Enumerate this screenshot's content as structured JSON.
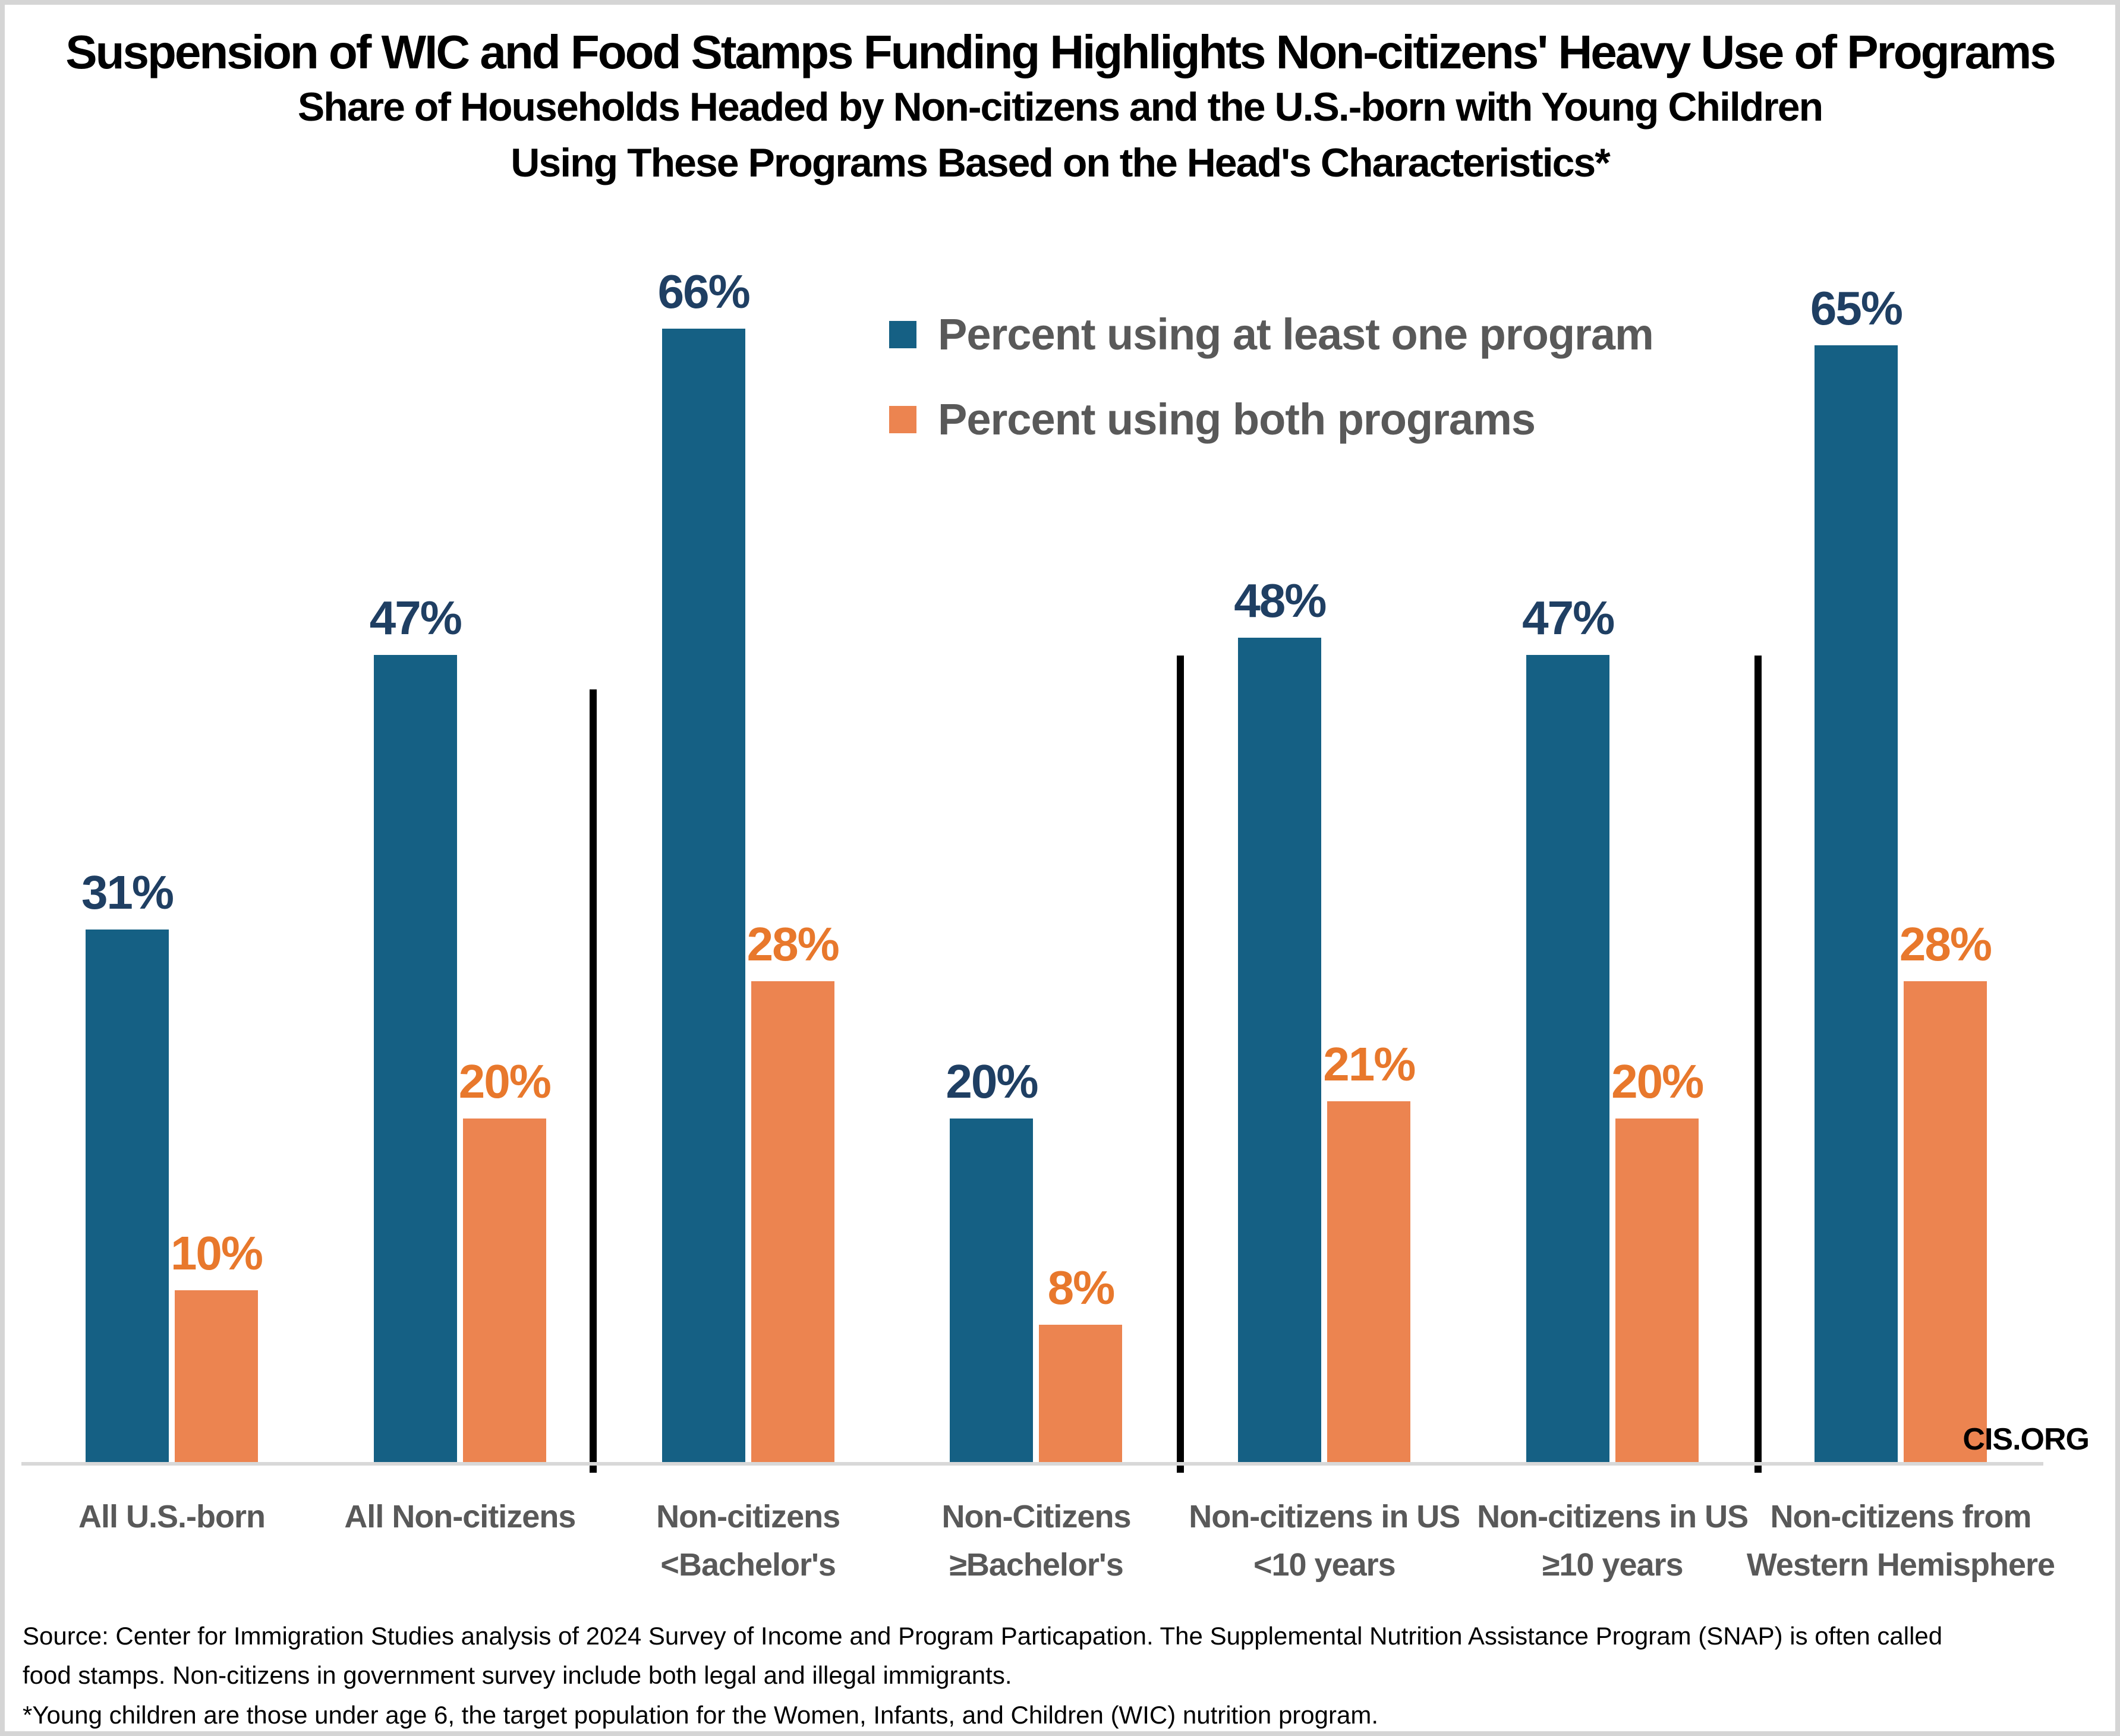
{
  "title": "Suspension of WIC and Food Stamps Funding Highlights Non-citizens' Heavy Use of Programs",
  "subtitle_lines": [
    "Share of Households Headed by Non-citizens and the U.S.-born with Young Children",
    "Using These Programs Based on the Head's Characteristics*"
  ],
  "legend": [
    {
      "label": "Percent using at least one program",
      "color": "#156084"
    },
    {
      "label": "Percent using both programs",
      "color": "#EC8450"
    }
  ],
  "watermark": "CIS.ORG",
  "source_lines": [
    "Source: Center for Immigration Studies analysis of 2024 Survey of Income and Program Particapation.  The Supplemental Nutrition Assistance Program (SNAP) is often called",
    "food stamps. Non-citizens in government survey include both legal and illegal immigrants.",
    "*Young children are those under age 6, the target population for the Women, Infants, and Children (WIC) nutrition program."
  ],
  "chart_data": {
    "type": "bar",
    "title": "Suspension of WIC and Food Stamps Funding Highlights Non-citizens' Heavy Use of Programs",
    "subtitle": "Share of Households Headed by Non-citizens and the U.S.-born with Young Children Using These Programs Based on the Head's Characteristics*",
    "categories": [
      [
        "All U.S.-born"
      ],
      [
        "All Non-citizens"
      ],
      [
        "Non-citizens",
        "<Bachelor's"
      ],
      [
        "Non-Citizens",
        "≥Bachelor's"
      ],
      [
        "Non-citizens in US",
        "<10 years"
      ],
      [
        "Non-citizens in US",
        "≥10 years"
      ],
      [
        "Non-citizens from",
        "Western Hemisphere"
      ]
    ],
    "series": [
      {
        "name": "Percent using at least one program",
        "color": "#156084",
        "label_color": "#1F3F63",
        "values": [
          31,
          47,
          66,
          20,
          48,
          47,
          65
        ]
      },
      {
        "name": "Percent using both programs",
        "color": "#EC8450",
        "label_color": "#E8782C",
        "values": [
          10,
          20,
          28,
          8,
          21,
          20,
          28
        ]
      }
    ],
    "value_suffix": "%",
    "ylim": [
      0,
      70
    ],
    "grid": false,
    "legend_position": "upper-center-inside",
    "divider_lines_after_groups": [
      2,
      4,
      6
    ],
    "axis_line_color": "#D8D8D8",
    "xlabel": "",
    "ylabel": ""
  }
}
